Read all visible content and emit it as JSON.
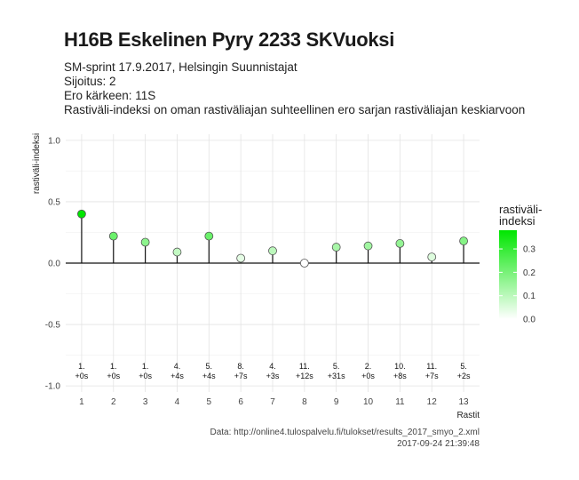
{
  "chart_data": {
    "type": "lollipop",
    "title": "H16B Eskelinen Pyry 2233 SKVuoksi",
    "subtitle_lines": [
      "SM-sprint 17.9.2017, Helsingin Suunnistajat",
      "Sijoitus: 2",
      "Ero kärkeen: 11S",
      "Rastiväli-indeksi on oman rastiväliajan suhteellinen ero sarjan rastiväliajan keskiarvoon"
    ],
    "xlabel": "Rastit",
    "ylabel": "rastiväli-indeksi",
    "x": [
      1,
      2,
      3,
      4,
      5,
      6,
      7,
      8,
      9,
      10,
      11,
      12,
      13
    ],
    "y": [
      0.4,
      0.22,
      0.17,
      0.09,
      0.22,
      0.04,
      0.1,
      0.0,
      0.13,
      0.14,
      0.16,
      0.05,
      0.18
    ],
    "point_labels": [
      [
        "1.",
        "+0s"
      ],
      [
        "1.",
        "+0s"
      ],
      [
        "1.",
        "+0s"
      ],
      [
        "4.",
        "+4s"
      ],
      [
        "5.",
        "+4s"
      ],
      [
        "8.",
        "+7s"
      ],
      [
        "4.",
        "+3s"
      ],
      [
        "11.",
        "+12s"
      ],
      [
        "5.",
        "+31s"
      ],
      [
        "2.",
        "+0s"
      ],
      [
        "10.",
        "+8s"
      ],
      [
        "11.",
        "+7s"
      ],
      [
        "5.",
        "+2s"
      ]
    ],
    "ylim": [
      -1.05,
      1.05
    ],
    "yticks": [
      -1.0,
      -0.5,
      0.0,
      0.5,
      1.0
    ],
    "ytick_labels": [
      "-1.0",
      "-0.5",
      "0.0",
      "0.5",
      "1.0"
    ],
    "xticks": [
      1,
      2,
      3,
      4,
      5,
      6,
      7,
      8,
      9,
      10,
      11,
      12,
      13
    ],
    "grid": true,
    "legend": {
      "title_lines": [
        "rastiväli-",
        "indeksi"
      ],
      "ticks": [
        0.0,
        0.1,
        0.2,
        0.3
      ],
      "tick_labels": [
        "0.0",
        "0.1",
        "0.2",
        "0.3"
      ],
      "max": 0.38,
      "color_low": "#ffffff",
      "color_high": "#00e600",
      "placement": "right"
    },
    "caption_lines": [
      "Data: http://online4.tulospalvelu.fi/tulokset/results_2017_smyo_2.xml",
      "2017-09-24 21:39:48"
    ]
  }
}
